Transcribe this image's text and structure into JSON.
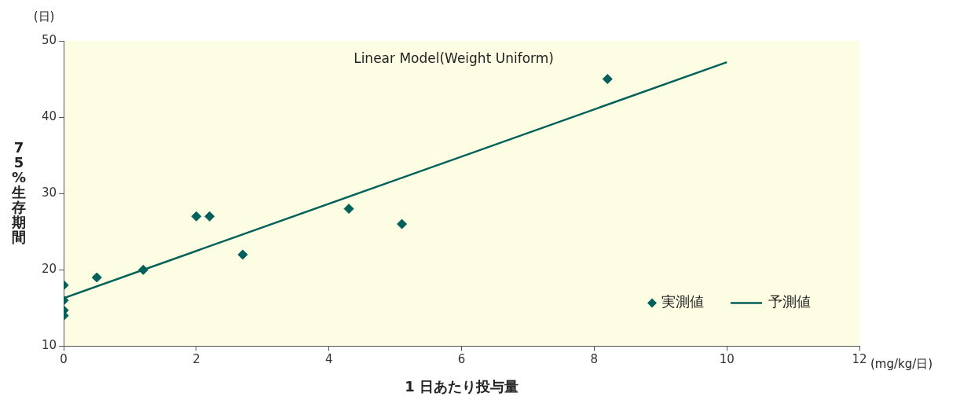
{
  "chart_data": {
    "type": "scatter",
    "ylabel": "75%生存期間",
    "xlabel": "1 日あたり投与量",
    "annotations": [
      "Linear Model(Weight Uniform)",
      "(日)",
      "(mg/kg/日)"
    ],
    "xlim": [
      0,
      12
    ],
    "xticks": [
      0,
      2,
      4,
      6,
      8,
      10,
      12
    ],
    "ylim": [
      10,
      50
    ],
    "yticks": [
      10,
      20,
      30,
      40,
      50
    ],
    "grid": false,
    "legend": "bottom right",
    "marker": "diamond",
    "series": [
      {
        "name": "実測値",
        "color": "#00605a",
        "x": [
          0,
          0,
          0,
          0,
          0.5,
          1.2,
          2,
          2.2,
          2.7,
          4.3,
          5.1,
          8.2
        ],
        "values": [
          18,
          16,
          14.7,
          14,
          19,
          20,
          27,
          27,
          22,
          28,
          26,
          45
        ]
      },
      {
        "name": "予測値",
        "color": "#00605a",
        "type": "line",
        "marker": "none",
        "line_style": "solid",
        "x": [
          0,
          10
        ],
        "values": [
          16.3,
          47.2
        ]
      }
    ]
  }
}
